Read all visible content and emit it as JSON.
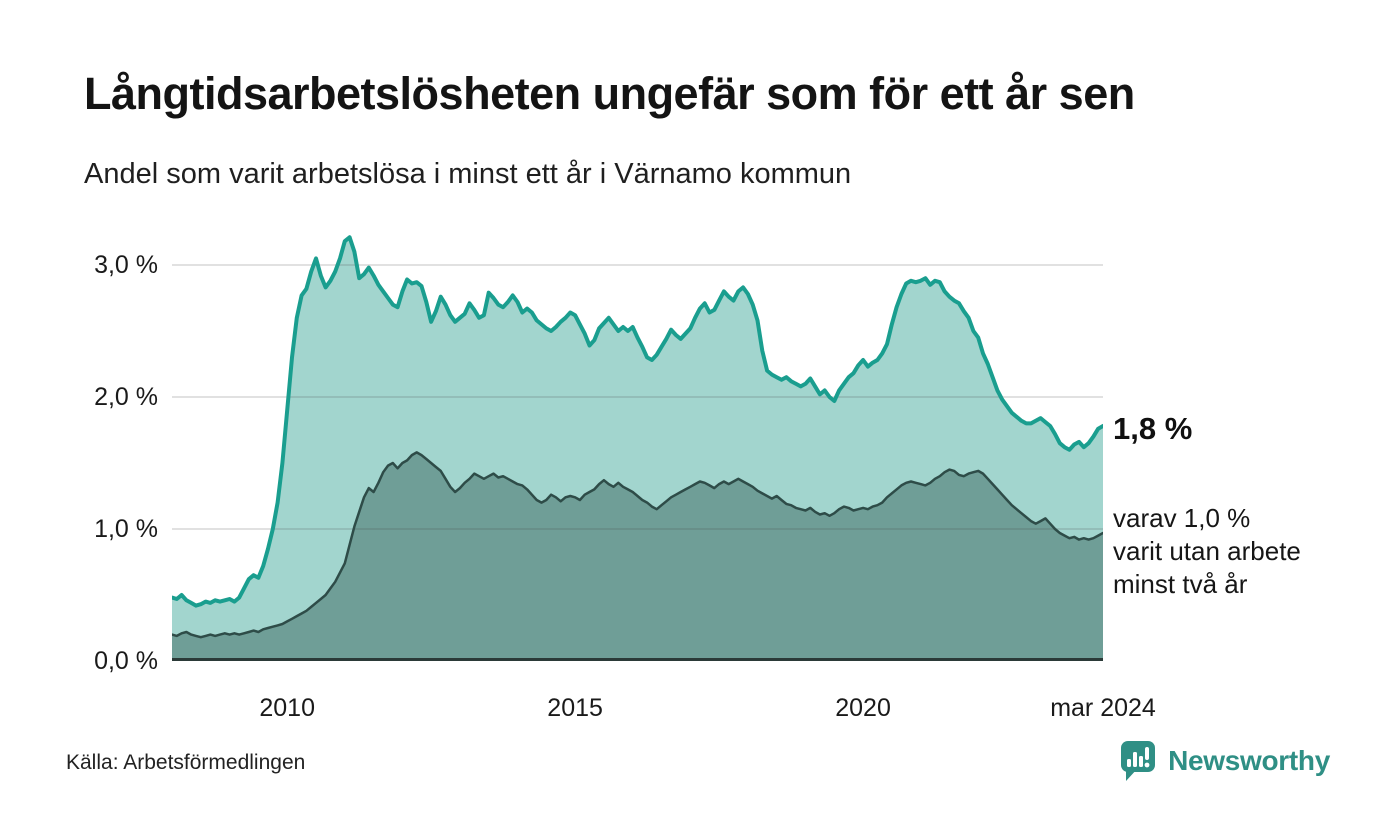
{
  "header": {
    "title": "Långtidsarbetslösheten ungefär som för ett år sen",
    "subtitle": "Andel som varit arbetslösa i minst ett år i Värnamo kommun"
  },
  "annotations": {
    "latest_value": "1,8 %",
    "note_lines": [
      "varav 1,0 %",
      "varit utan arbete",
      "minst två år"
    ]
  },
  "footer": {
    "source": "Källa: Arbetsförmedlingen",
    "logo_text": "Newsworthy"
  },
  "colors": {
    "long_term_line": "#1a9e8f",
    "long_term_fill": "#a2d5ce",
    "two_year_line": "#2e4c48",
    "two_year_fill": "#6f9e97",
    "baseline": "#2b3a38",
    "gridline": "rgba(70,70,70,0.16)",
    "logo_teal": "#2f8f85"
  },
  "chart_data": {
    "type": "area",
    "title": "Långtidsarbetslösheten ungefär som för ett år sen",
    "subtitle": "Andel som varit arbetslösa i minst ett år i Värnamo kommun",
    "unit": "%",
    "x_start": "2008-01",
    "x_end": "2024-03",
    "x_frequency": "monthly",
    "ylim": [
      0,
      3.26
    ],
    "grid": true,
    "y_ticks": [
      {
        "label": "0,0 %",
        "value": 0
      },
      {
        "label": "1,0 %",
        "value": 1
      },
      {
        "label": "2,0 %",
        "value": 2
      },
      {
        "label": "3,0 %",
        "value": 3
      }
    ],
    "x_ticks": [
      {
        "label": "2010",
        "month_index": 24
      },
      {
        "label": "2015",
        "month_index": 84
      },
      {
        "label": "2020",
        "month_index": 144
      },
      {
        "label": "mar 2024",
        "month_index": 194
      }
    ],
    "series": [
      {
        "name": "Andel som varit arbetslösa i minst ett år",
        "latest_label": "1,8 %",
        "line_color": "#1a9e8f",
        "fill_color": "#a2d5ce",
        "line_width": 4,
        "values": [
          0.48,
          0.47,
          0.5,
          0.46,
          0.44,
          0.42,
          0.43,
          0.45,
          0.44,
          0.46,
          0.45,
          0.46,
          0.47,
          0.45,
          0.48,
          0.55,
          0.62,
          0.65,
          0.63,
          0.72,
          0.85,
          1.0,
          1.2,
          1.5,
          1.9,
          2.3,
          2.6,
          2.77,
          2.82,
          2.95,
          3.05,
          2.92,
          2.83,
          2.88,
          2.95,
          3.05,
          3.18,
          3.21,
          3.1,
          2.9,
          2.93,
          2.98,
          2.92,
          2.85,
          2.8,
          2.75,
          2.7,
          2.68,
          2.8,
          2.89,
          2.86,
          2.87,
          2.84,
          2.72,
          2.57,
          2.65,
          2.76,
          2.7,
          2.62,
          2.57,
          2.6,
          2.63,
          2.71,
          2.66,
          2.6,
          2.62,
          2.79,
          2.75,
          2.7,
          2.68,
          2.72,
          2.77,
          2.72,
          2.64,
          2.67,
          2.64,
          2.58,
          2.55,
          2.52,
          2.5,
          2.53,
          2.57,
          2.6,
          2.64,
          2.62,
          2.55,
          2.48,
          2.39,
          2.43,
          2.52,
          2.56,
          2.6,
          2.55,
          2.5,
          2.53,
          2.5,
          2.53,
          2.45,
          2.38,
          2.3,
          2.28,
          2.32,
          2.38,
          2.44,
          2.51,
          2.47,
          2.44,
          2.48,
          2.52,
          2.6,
          2.67,
          2.71,
          2.64,
          2.66,
          2.73,
          2.8,
          2.76,
          2.73,
          2.8,
          2.83,
          2.78,
          2.7,
          2.58,
          2.35,
          2.2,
          2.17,
          2.15,
          2.13,
          2.15,
          2.12,
          2.1,
          2.08,
          2.1,
          2.14,
          2.08,
          2.02,
          2.05,
          2.0,
          1.97,
          2.05,
          2.1,
          2.15,
          2.18,
          2.24,
          2.28,
          2.23,
          2.26,
          2.28,
          2.33,
          2.4,
          2.55,
          2.68,
          2.78,
          2.86,
          2.88,
          2.87,
          2.88,
          2.9,
          2.85,
          2.88,
          2.87,
          2.8,
          2.76,
          2.73,
          2.71,
          2.65,
          2.6,
          2.5,
          2.45,
          2.33,
          2.25,
          2.15,
          2.05,
          1.98,
          1.93,
          1.88,
          1.85,
          1.82,
          1.8,
          1.8,
          1.82,
          1.84,
          1.81,
          1.78,
          1.72,
          1.65,
          1.62,
          1.6,
          1.64,
          1.66,
          1.62,
          1.65,
          1.7,
          1.76,
          1.78
        ]
      },
      {
        "name": "varav utan arbete minst två år",
        "latest_label": "varav 1,0 % varit utan arbete minst två år",
        "line_color": "#2e4c48",
        "fill_color": "#6f9e97",
        "line_width": 2.5,
        "values": [
          0.2,
          0.19,
          0.21,
          0.22,
          0.2,
          0.19,
          0.18,
          0.19,
          0.2,
          0.19,
          0.2,
          0.21,
          0.2,
          0.21,
          0.2,
          0.21,
          0.22,
          0.23,
          0.22,
          0.24,
          0.25,
          0.26,
          0.27,
          0.28,
          0.3,
          0.32,
          0.34,
          0.36,
          0.38,
          0.41,
          0.44,
          0.47,
          0.5,
          0.55,
          0.6,
          0.67,
          0.74,
          0.88,
          1.02,
          1.13,
          1.24,
          1.31,
          1.28,
          1.35,
          1.43,
          1.48,
          1.5,
          1.46,
          1.5,
          1.52,
          1.56,
          1.58,
          1.56,
          1.53,
          1.5,
          1.47,
          1.44,
          1.38,
          1.32,
          1.28,
          1.31,
          1.35,
          1.38,
          1.42,
          1.4,
          1.38,
          1.4,
          1.42,
          1.39,
          1.4,
          1.38,
          1.36,
          1.34,
          1.33,
          1.3,
          1.26,
          1.22,
          1.2,
          1.22,
          1.26,
          1.24,
          1.21,
          1.24,
          1.25,
          1.24,
          1.22,
          1.26,
          1.28,
          1.3,
          1.34,
          1.37,
          1.34,
          1.32,
          1.35,
          1.32,
          1.3,
          1.28,
          1.25,
          1.22,
          1.2,
          1.17,
          1.15,
          1.18,
          1.21,
          1.24,
          1.26,
          1.28,
          1.3,
          1.32,
          1.34,
          1.36,
          1.35,
          1.33,
          1.31,
          1.34,
          1.36,
          1.34,
          1.36,
          1.38,
          1.36,
          1.34,
          1.32,
          1.29,
          1.27,
          1.25,
          1.23,
          1.25,
          1.22,
          1.19,
          1.18,
          1.16,
          1.15,
          1.14,
          1.16,
          1.13,
          1.11,
          1.12,
          1.1,
          1.12,
          1.15,
          1.17,
          1.16,
          1.14,
          1.15,
          1.16,
          1.15,
          1.17,
          1.18,
          1.2,
          1.24,
          1.27,
          1.3,
          1.33,
          1.35,
          1.36,
          1.35,
          1.34,
          1.33,
          1.35,
          1.38,
          1.4,
          1.43,
          1.45,
          1.44,
          1.41,
          1.4,
          1.42,
          1.43,
          1.44,
          1.42,
          1.38,
          1.34,
          1.3,
          1.26,
          1.22,
          1.18,
          1.15,
          1.12,
          1.09,
          1.06,
          1.04,
          1.06,
          1.08,
          1.04,
          1.0,
          0.97,
          0.95,
          0.93,
          0.94,
          0.92,
          0.93,
          0.92,
          0.93,
          0.95,
          0.97
        ]
      }
    ]
  }
}
